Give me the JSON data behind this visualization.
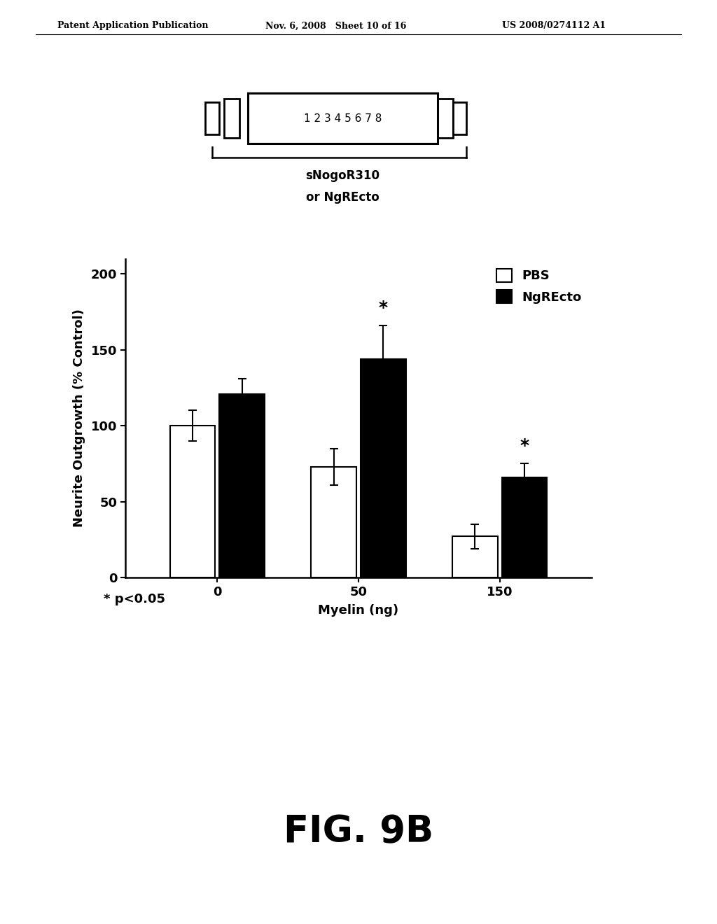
{
  "header_left": "Patent Application Publication",
  "header_mid": "Nov. 6, 2008   Sheet 10 of 16",
  "header_right": "US 2008/0274112 A1",
  "schematic_label_line1": "sNogoR310",
  "schematic_label_line2": "or NgREcto",
  "schematic_numbers": "1 2 3 4 5 6 7 8",
  "bar_groups": [
    {
      "x_label": "0",
      "pbs_value": 100,
      "pbs_err": 10,
      "ngrecto_value": 121,
      "ngrecto_err": 10,
      "significant": false
    },
    {
      "x_label": "50",
      "pbs_value": 73,
      "pbs_err": 12,
      "ngrecto_value": 144,
      "ngrecto_err": 22,
      "significant": true
    },
    {
      "x_label": "150",
      "pbs_value": 27,
      "pbs_err": 8,
      "ngrecto_value": 66,
      "ngrecto_err": 9,
      "significant": true
    }
  ],
  "ylabel": "Neurite Outgrowth (% Control)",
  "xlabel": "Myelin (ng)",
  "ylim": [
    0,
    210
  ],
  "yticks": [
    0,
    50,
    100,
    150,
    200
  ],
  "legend_labels": [
    "PBS",
    "NgREcto"
  ],
  "pvalue_text": "* p<0.05",
  "fig_label": "FIG. 9B",
  "bar_width": 0.32,
  "background_color": "white",
  "bar_edge_color": "black",
  "bar_linewidth": 1.5,
  "pbs_color": "white",
  "ngrecto_color": "black"
}
